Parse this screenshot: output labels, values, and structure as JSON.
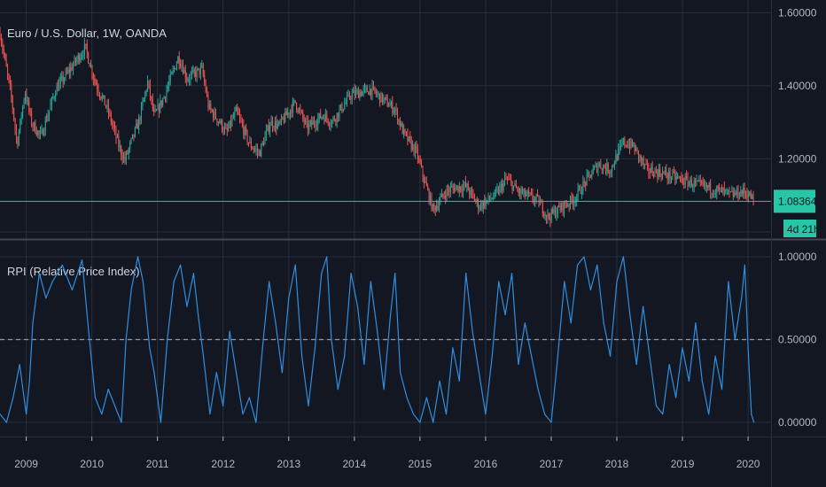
{
  "colors": {
    "background": "#131722",
    "grid": "#2a2e39",
    "axis_text": "#b2b5be",
    "separator": "#434651",
    "candle_up": "#26a69a",
    "candle_down": "#ef5350",
    "price_line": "#26c6a6",
    "badge": "#26c6a6",
    "rpi_line": "#2f8ee0",
    "rpi_midline": "#9598a1"
  },
  "chart_data": [
    {
      "type": "candlestick",
      "title": "Euro / U.S. Dollar, 1W, OANDA",
      "ylim": [
        0.985,
        1.635
      ],
      "y_ticks": [
        {
          "value": 1.6,
          "label": "1.60000"
        },
        {
          "value": 1.4,
          "label": "1.40000"
        },
        {
          "value": 1.2,
          "label": "1.20000"
        }
      ],
      "last_price": {
        "value": 1.08364,
        "label": "1.08364"
      },
      "countdown_label": "4d 21h",
      "close_anchors": [
        [
          2008.6,
          1.545
        ],
        [
          2008.78,
          1.36
        ],
        [
          2008.86,
          1.24
        ],
        [
          2008.98,
          1.385
        ],
        [
          2009.08,
          1.3
        ],
        [
          2009.22,
          1.26
        ],
        [
          2009.45,
          1.39
        ],
        [
          2009.65,
          1.44
        ],
        [
          2009.9,
          1.505
        ],
        [
          2010.05,
          1.41
        ],
        [
          2010.25,
          1.33
        ],
        [
          2010.42,
          1.23
        ],
        [
          2010.5,
          1.195
        ],
        [
          2010.72,
          1.305
        ],
        [
          2010.85,
          1.41
        ],
        [
          2010.95,
          1.315
        ],
        [
          2011.1,
          1.37
        ],
        [
          2011.32,
          1.48
        ],
        [
          2011.45,
          1.42
        ],
        [
          2011.68,
          1.445
        ],
        [
          2011.78,
          1.34
        ],
        [
          2011.95,
          1.3
        ],
        [
          2012.05,
          1.27
        ],
        [
          2012.2,
          1.33
        ],
        [
          2012.4,
          1.24
        ],
        [
          2012.55,
          1.215
        ],
        [
          2012.72,
          1.3
        ],
        [
          2012.85,
          1.29
        ],
        [
          2013.1,
          1.355
        ],
        [
          2013.28,
          1.285
        ],
        [
          2013.52,
          1.32
        ],
        [
          2013.65,
          1.3
        ],
        [
          2013.95,
          1.375
        ],
        [
          2014.25,
          1.39
        ],
        [
          2014.45,
          1.36
        ],
        [
          2014.62,
          1.335
        ],
        [
          2014.75,
          1.27
        ],
        [
          2014.95,
          1.215
        ],
        [
          2015.05,
          1.15
        ],
        [
          2015.2,
          1.06
        ],
        [
          2015.4,
          1.11
        ],
        [
          2015.5,
          1.12
        ],
        [
          2015.7,
          1.125
        ],
        [
          2015.9,
          1.07
        ],
        [
          2016.15,
          1.1
        ],
        [
          2016.32,
          1.145
        ],
        [
          2016.5,
          1.11
        ],
        [
          2016.8,
          1.085
        ],
        [
          2016.95,
          1.04
        ],
        [
          2017.1,
          1.06
        ],
        [
          2017.35,
          1.09
        ],
        [
          2017.55,
          1.145
        ],
        [
          2017.72,
          1.185
        ],
        [
          2017.9,
          1.17
        ],
        [
          2018.1,
          1.245
        ],
        [
          2018.25,
          1.235
        ],
        [
          2018.45,
          1.17
        ],
        [
          2018.7,
          1.16
        ],
        [
          2018.95,
          1.145
        ],
        [
          2019.2,
          1.13
        ],
        [
          2019.4,
          1.12
        ],
        [
          2019.6,
          1.11
        ],
        [
          2019.75,
          1.1
        ],
        [
          2019.9,
          1.11
        ],
        [
          2020.0,
          1.105
        ],
        [
          2020.09,
          1.084
        ]
      ],
      "line_color": "#26c6a6"
    },
    {
      "type": "line",
      "title": "RPI (Relative Price Index)",
      "ylim": [
        -0.08,
        1.08
      ],
      "y_ticks": [
        {
          "value": 1.0,
          "label": "1.00000"
        },
        {
          "value": 0.5,
          "label": "0.50000"
        },
        {
          "value": 0.0,
          "label": "0.00000"
        }
      ],
      "midline_value": 0.5,
      "series": [
        {
          "name": "",
          "points": [
            [
              2008.6,
              0.05
            ],
            [
              2008.7,
              0.0
            ],
            [
              2008.8,
              0.15
            ],
            [
              2008.9,
              0.35
            ],
            [
              2009.0,
              0.05
            ],
            [
              2009.05,
              0.25
            ],
            [
              2009.1,
              0.6
            ],
            [
              2009.2,
              0.9
            ],
            [
              2009.3,
              0.75
            ],
            [
              2009.4,
              0.85
            ],
            [
              2009.55,
              0.95
            ],
            [
              2009.7,
              0.8
            ],
            [
              2009.85,
              0.98
            ],
            [
              2009.95,
              0.55
            ],
            [
              2010.05,
              0.15
            ],
            [
              2010.15,
              0.05
            ],
            [
              2010.25,
              0.2
            ],
            [
              2010.35,
              0.1
            ],
            [
              2010.45,
              0.0
            ],
            [
              2010.52,
              0.5
            ],
            [
              2010.6,
              0.8
            ],
            [
              2010.7,
              1.0
            ],
            [
              2010.78,
              0.85
            ],
            [
              2010.88,
              0.45
            ],
            [
              2010.95,
              0.3
            ],
            [
              2011.05,
              0.0
            ],
            [
              2011.15,
              0.5
            ],
            [
              2011.25,
              0.85
            ],
            [
              2011.35,
              0.95
            ],
            [
              2011.45,
              0.7
            ],
            [
              2011.55,
              0.9
            ],
            [
              2011.62,
              0.65
            ],
            [
              2011.7,
              0.4
            ],
            [
              2011.8,
              0.05
            ],
            [
              2011.9,
              0.3
            ],
            [
              2012.0,
              0.1
            ],
            [
              2012.1,
              0.55
            ],
            [
              2012.2,
              0.3
            ],
            [
              2012.3,
              0.05
            ],
            [
              2012.4,
              0.15
            ],
            [
              2012.5,
              0.0
            ],
            [
              2012.6,
              0.45
            ],
            [
              2012.7,
              0.85
            ],
            [
              2012.8,
              0.6
            ],
            [
              2012.9,
              0.3
            ],
            [
              2013.0,
              0.75
            ],
            [
              2013.1,
              0.95
            ],
            [
              2013.2,
              0.4
            ],
            [
              2013.3,
              0.1
            ],
            [
              2013.4,
              0.45
            ],
            [
              2013.5,
              0.9
            ],
            [
              2013.58,
              1.0
            ],
            [
              2013.65,
              0.5
            ],
            [
              2013.75,
              0.2
            ],
            [
              2013.85,
              0.4
            ],
            [
              2013.95,
              0.9
            ],
            [
              2014.05,
              0.7
            ],
            [
              2014.15,
              0.35
            ],
            [
              2014.25,
              0.85
            ],
            [
              2014.35,
              0.55
            ],
            [
              2014.45,
              0.2
            ],
            [
              2014.55,
              0.65
            ],
            [
              2014.62,
              0.9
            ],
            [
              2014.7,
              0.3
            ],
            [
              2014.8,
              0.15
            ],
            [
              2014.9,
              0.05
            ],
            [
              2015.0,
              0.0
            ],
            [
              2015.1,
              0.15
            ],
            [
              2015.2,
              0.0
            ],
            [
              2015.3,
              0.25
            ],
            [
              2015.4,
              0.05
            ],
            [
              2015.5,
              0.45
            ],
            [
              2015.6,
              0.25
            ],
            [
              2015.7,
              0.9
            ],
            [
              2015.8,
              0.55
            ],
            [
              2015.9,
              0.3
            ],
            [
              2016.0,
              0.05
            ],
            [
              2016.1,
              0.4
            ],
            [
              2016.2,
              0.85
            ],
            [
              2016.3,
              0.65
            ],
            [
              2016.4,
              0.9
            ],
            [
              2016.5,
              0.35
            ],
            [
              2016.6,
              0.6
            ],
            [
              2016.7,
              0.4
            ],
            [
              2016.8,
              0.2
            ],
            [
              2016.9,
              0.05
            ],
            [
              2017.0,
              0.0
            ],
            [
              2017.1,
              0.4
            ],
            [
              2017.2,
              0.85
            ],
            [
              2017.3,
              0.6
            ],
            [
              2017.4,
              0.95
            ],
            [
              2017.5,
              1.0
            ],
            [
              2017.6,
              0.8
            ],
            [
              2017.7,
              0.95
            ],
            [
              2017.8,
              0.6
            ],
            [
              2017.9,
              0.4
            ],
            [
              2018.0,
              0.85
            ],
            [
              2018.1,
              1.0
            ],
            [
              2018.2,
              0.65
            ],
            [
              2018.3,
              0.35
            ],
            [
              2018.4,
              0.7
            ],
            [
              2018.5,
              0.4
            ],
            [
              2018.6,
              0.1
            ],
            [
              2018.7,
              0.05
            ],
            [
              2018.8,
              0.35
            ],
            [
              2018.9,
              0.15
            ],
            [
              2019.0,
              0.45
            ],
            [
              2019.1,
              0.25
            ],
            [
              2019.2,
              0.6
            ],
            [
              2019.3,
              0.25
            ],
            [
              2019.4,
              0.05
            ],
            [
              2019.5,
              0.4
            ],
            [
              2019.6,
              0.2
            ],
            [
              2019.7,
              0.85
            ],
            [
              2019.8,
              0.5
            ],
            [
              2019.9,
              0.75
            ],
            [
              2019.95,
              0.95
            ],
            [
              2020.0,
              0.45
            ],
            [
              2020.05,
              0.05
            ],
            [
              2020.09,
              0.0
            ]
          ]
        }
      ]
    }
  ],
  "x_axis": {
    "range": [
      2008.6,
      2020.35
    ],
    "ticks": [
      {
        "value": 2009,
        "label": "2009"
      },
      {
        "value": 2010,
        "label": "2010"
      },
      {
        "value": 2011,
        "label": "2011"
      },
      {
        "value": 2012,
        "label": "2012"
      },
      {
        "value": 2013,
        "label": "2013"
      },
      {
        "value": 2014,
        "label": "2014"
      },
      {
        "value": 2015,
        "label": "2015"
      },
      {
        "value": 2016,
        "label": "2016"
      },
      {
        "value": 2017,
        "label": "2017"
      },
      {
        "value": 2018,
        "label": "2018"
      },
      {
        "value": 2019,
        "label": "2019"
      },
      {
        "value": 2020,
        "label": "2020"
      }
    ]
  }
}
